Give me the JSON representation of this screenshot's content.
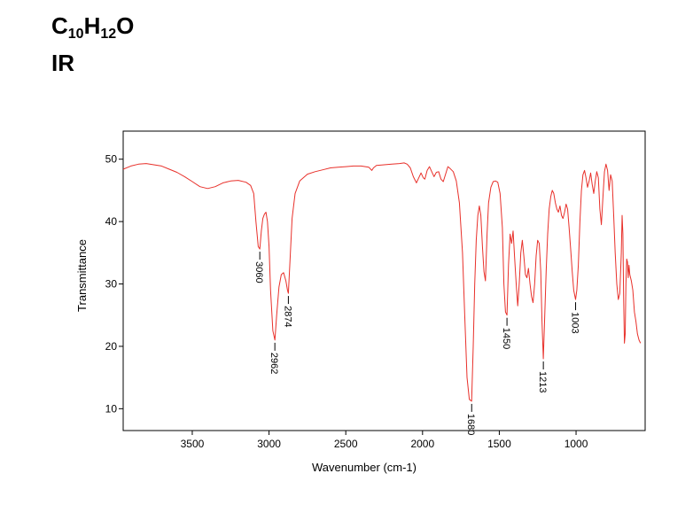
{
  "header": {
    "formula_parts": [
      "C",
      "10",
      "H",
      "12",
      "O"
    ],
    "technique": "IR"
  },
  "chart_data": {
    "type": "line",
    "title": "",
    "xlabel": "Wavenumber (cm-1)",
    "ylabel": "Transmittance",
    "xlim": [
      3950,
      550
    ],
    "ylim": [
      6.5,
      54.5
    ],
    "x_reversed": true,
    "xticks": [
      3500,
      3000,
      2500,
      2000,
      1500,
      1000
    ],
    "yticks": [
      10,
      20,
      30,
      40,
      50
    ],
    "line_color": "#e8302a",
    "series": [
      {
        "values": [
          [
            3950,
            48.4
          ],
          [
            3900,
            48.9
          ],
          [
            3850,
            49.2
          ],
          [
            3800,
            49.3
          ],
          [
            3750,
            49.1
          ],
          [
            3700,
            48.9
          ],
          [
            3650,
            48.4
          ],
          [
            3600,
            47.9
          ],
          [
            3550,
            47.2
          ],
          [
            3500,
            46.4
          ],
          [
            3450,
            45.6
          ],
          [
            3400,
            45.3
          ],
          [
            3350,
            45.6
          ],
          [
            3300,
            46.2
          ],
          [
            3250,
            46.5
          ],
          [
            3200,
            46.6
          ],
          [
            3150,
            46.3
          ],
          [
            3120,
            45.8
          ],
          [
            3100,
            44.5
          ],
          [
            3085,
            40.0
          ],
          [
            3070,
            36.0
          ],
          [
            3060,
            35.6
          ],
          [
            3050,
            38.5
          ],
          [
            3040,
            40.5
          ],
          [
            3030,
            41.2
          ],
          [
            3020,
            41.5
          ],
          [
            3010,
            40.0
          ],
          [
            3000,
            36.0
          ],
          [
            2990,
            29.0
          ],
          [
            2975,
            22.5
          ],
          [
            2962,
            21.0
          ],
          [
            2950,
            25.0
          ],
          [
            2935,
            29.5
          ],
          [
            2920,
            31.5
          ],
          [
            2905,
            31.8
          ],
          [
            2890,
            30.5
          ],
          [
            2880,
            29.0
          ],
          [
            2874,
            28.5
          ],
          [
            2865,
            33.0
          ],
          [
            2850,
            40.5
          ],
          [
            2830,
            44.5
          ],
          [
            2800,
            46.5
          ],
          [
            2750,
            47.6
          ],
          [
            2700,
            48.0
          ],
          [
            2650,
            48.3
          ],
          [
            2600,
            48.6
          ],
          [
            2550,
            48.7
          ],
          [
            2500,
            48.8
          ],
          [
            2450,
            48.9
          ],
          [
            2400,
            48.9
          ],
          [
            2350,
            48.7
          ],
          [
            2330,
            48.2
          ],
          [
            2320,
            48.6
          ],
          [
            2300,
            49.0
          ],
          [
            2250,
            49.1
          ],
          [
            2200,
            49.2
          ],
          [
            2150,
            49.3
          ],
          [
            2120,
            49.4
          ],
          [
            2100,
            49.2
          ],
          [
            2080,
            48.6
          ],
          [
            2060,
            47.2
          ],
          [
            2040,
            46.2
          ],
          [
            2025,
            47.0
          ],
          [
            2010,
            47.8
          ],
          [
            1995,
            47.0
          ],
          [
            1985,
            46.8
          ],
          [
            1970,
            48.2
          ],
          [
            1955,
            48.8
          ],
          [
            1940,
            48.0
          ],
          [
            1925,
            47.2
          ],
          [
            1910,
            47.9
          ],
          [
            1895,
            48.0
          ],
          [
            1880,
            46.8
          ],
          [
            1865,
            46.4
          ],
          [
            1850,
            47.6
          ],
          [
            1835,
            48.8
          ],
          [
            1820,
            48.5
          ],
          [
            1800,
            48.0
          ],
          [
            1780,
            46.5
          ],
          [
            1760,
            43.0
          ],
          [
            1740,
            35.0
          ],
          [
            1725,
            25.0
          ],
          [
            1710,
            15.0
          ],
          [
            1695,
            11.5
          ],
          [
            1680,
            11.2
          ],
          [
            1670,
            20.0
          ],
          [
            1660,
            30.0
          ],
          [
            1650,
            37.0
          ],
          [
            1640,
            41.0
          ],
          [
            1630,
            42.5
          ],
          [
            1620,
            41.0
          ],
          [
            1610,
            36.0
          ],
          [
            1600,
            32.0
          ],
          [
            1590,
            30.5
          ],
          [
            1580,
            38.0
          ],
          [
            1570,
            43.0
          ],
          [
            1555,
            45.5
          ],
          [
            1540,
            46.4
          ],
          [
            1525,
            46.5
          ],
          [
            1510,
            46.3
          ],
          [
            1495,
            44.5
          ],
          [
            1480,
            39.0
          ],
          [
            1470,
            30.0
          ],
          [
            1460,
            25.5
          ],
          [
            1450,
            25.0
          ],
          [
            1440,
            33.0
          ],
          [
            1430,
            38.0
          ],
          [
            1420,
            36.5
          ],
          [
            1410,
            38.5
          ],
          [
            1400,
            34.0
          ],
          [
            1390,
            30.0
          ],
          [
            1380,
            26.5
          ],
          [
            1370,
            30.0
          ],
          [
            1360,
            35.0
          ],
          [
            1350,
            37.0
          ],
          [
            1340,
            34.5
          ],
          [
            1330,
            31.5
          ],
          [
            1320,
            31.0
          ],
          [
            1310,
            32.5
          ],
          [
            1300,
            30.0
          ],
          [
            1290,
            28.0
          ],
          [
            1280,
            27.0
          ],
          [
            1270,
            30.0
          ],
          [
            1260,
            34.5
          ],
          [
            1250,
            37.0
          ],
          [
            1240,
            36.5
          ],
          [
            1230,
            32.0
          ],
          [
            1222,
            24.0
          ],
          [
            1213,
            18.0
          ],
          [
            1205,
            24.0
          ],
          [
            1195,
            32.0
          ],
          [
            1185,
            38.0
          ],
          [
            1175,
            42.0
          ],
          [
            1165,
            44.0
          ],
          [
            1155,
            45.0
          ],
          [
            1145,
            44.5
          ],
          [
            1135,
            43.0
          ],
          [
            1125,
            42.0
          ],
          [
            1115,
            41.5
          ],
          [
            1105,
            42.5
          ],
          [
            1095,
            41.0
          ],
          [
            1085,
            40.5
          ],
          [
            1075,
            41.5
          ],
          [
            1065,
            42.8
          ],
          [
            1055,
            42.0
          ],
          [
            1045,
            39.0
          ],
          [
            1035,
            35.5
          ],
          [
            1025,
            32.0
          ],
          [
            1015,
            29.0
          ],
          [
            1003,
            27.5
          ],
          [
            995,
            29.0
          ],
          [
            985,
            33.0
          ],
          [
            975,
            40.0
          ],
          [
            965,
            45.0
          ],
          [
            955,
            47.5
          ],
          [
            945,
            48.2
          ],
          [
            935,
            47.0
          ],
          [
            925,
            45.5
          ],
          [
            915,
            46.5
          ],
          [
            905,
            47.8
          ],
          [
            895,
            46.0
          ],
          [
            885,
            44.5
          ],
          [
            875,
            46.5
          ],
          [
            865,
            48.0
          ],
          [
            855,
            47.0
          ],
          [
            845,
            42.0
          ],
          [
            835,
            39.5
          ],
          [
            825,
            44.0
          ],
          [
            815,
            48.0
          ],
          [
            805,
            49.2
          ],
          [
            795,
            48.2
          ],
          [
            785,
            45.0
          ],
          [
            775,
            47.5
          ],
          [
            765,
            46.5
          ],
          [
            755,
            41.0
          ],
          [
            745,
            35.0
          ],
          [
            735,
            30.0
          ],
          [
            725,
            27.5
          ],
          [
            715,
            28.5
          ],
          [
            705,
            35.0
          ],
          [
            700,
            41.0
          ],
          [
            695,
            38.0
          ],
          [
            690,
            28.0
          ],
          [
            685,
            20.5
          ],
          [
            680,
            22.0
          ],
          [
            675,
            30.0
          ],
          [
            670,
            34.0
          ],
          [
            665,
            33.5
          ],
          [
            660,
            31.0
          ],
          [
            655,
            33.0
          ],
          [
            650,
            31.5
          ],
          [
            640,
            30.5
          ],
          [
            630,
            29.0
          ],
          [
            620,
            25.5
          ],
          [
            610,
            24.0
          ],
          [
            600,
            22.0
          ],
          [
            590,
            21.0
          ],
          [
            580,
            20.5
          ]
        ]
      }
    ],
    "annotations": [
      {
        "label": "3060",
        "x": 3060,
        "y": 35.6
      },
      {
        "label": "2962",
        "x": 2962,
        "y": 21.0
      },
      {
        "label": "2874",
        "x": 2874,
        "y": 28.5
      },
      {
        "label": "1680",
        "x": 1680,
        "y": 11.2
      },
      {
        "label": "1450",
        "x": 1450,
        "y": 25.0
      },
      {
        "label": "1213",
        "x": 1213,
        "y": 18.0
      },
      {
        "label": "1003",
        "x": 1003,
        "y": 27.5
      }
    ]
  }
}
